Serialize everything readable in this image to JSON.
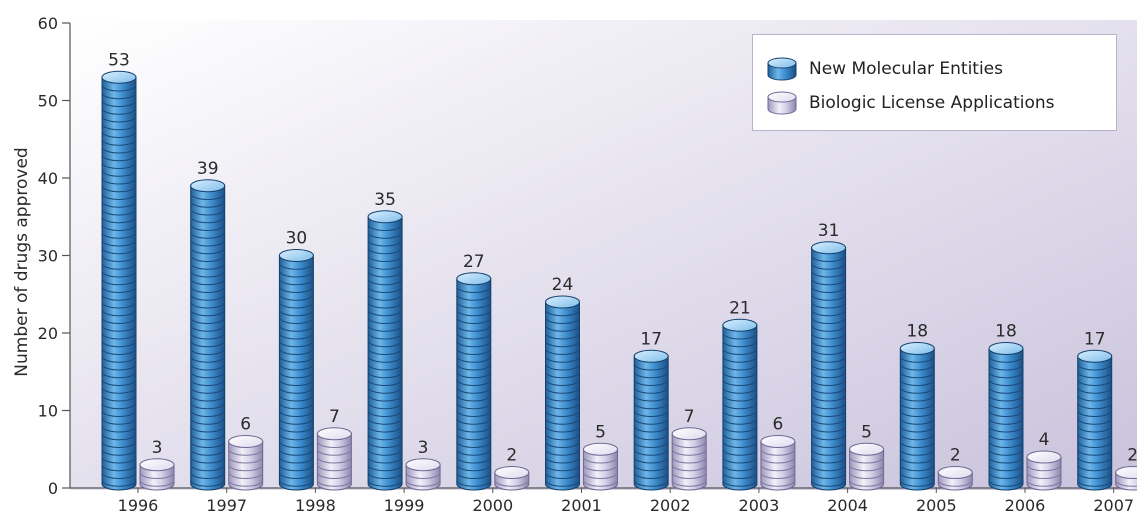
{
  "chart_data": {
    "type": "bar",
    "title": "",
    "xlabel": "",
    "ylabel": "Number of drugs approved",
    "ylim": [
      0,
      60
    ],
    "yticks": [
      "0",
      "10",
      "20",
      "30",
      "40",
      "50",
      "60"
    ],
    "categories": [
      "1996",
      "1997",
      "1998",
      "1999",
      "2000",
      "2001",
      "2002",
      "2003",
      "2004",
      "2005",
      "2006",
      "2007"
    ],
    "series": [
      {
        "name": "New Molecular Entities",
        "color": "#3f8fd0",
        "values": [
          53,
          39,
          30,
          35,
          27,
          24,
          17,
          21,
          31,
          18,
          18,
          17
        ]
      },
      {
        "name": "Biologic License Applications",
        "color": "#d7d4ea",
        "values": [
          3,
          6,
          7,
          3,
          2,
          5,
          7,
          6,
          5,
          2,
          4,
          2
        ]
      }
    ],
    "legend_position": "top-right",
    "grid": false
  }
}
